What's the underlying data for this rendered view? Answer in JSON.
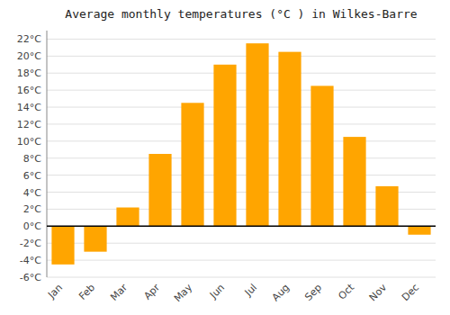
{
  "chart_data": {
    "type": "bar",
    "title": "Average monthly temperatures (°C ) in Wilkes-Barre",
    "categories": [
      "Jan",
      "Feb",
      "Mar",
      "Apr",
      "May",
      "Jun",
      "Jul",
      "Aug",
      "Sep",
      "Oct",
      "Nov",
      "Dec"
    ],
    "values": [
      -4.5,
      -3.0,
      2.2,
      8.5,
      14.5,
      19.0,
      21.5,
      20.5,
      16.5,
      10.5,
      4.7,
      -1.0
    ],
    "color": "#FFA500",
    "ylim": [
      -6,
      23
    ],
    "yticks": [
      {
        "value": -6,
        "label": "-6°C"
      },
      {
        "value": -4,
        "label": "-4°C"
      },
      {
        "value": -2,
        "label": "-2°C"
      },
      {
        "value": 0,
        "label": "0°C"
      },
      {
        "value": 2,
        "label": "2°C"
      },
      {
        "value": 4,
        "label": "4°C"
      },
      {
        "value": 6,
        "label": "6°C"
      },
      {
        "value": 8,
        "label": "8°C"
      },
      {
        "value": 10,
        "label": "10°C"
      },
      {
        "value": 12,
        "label": "12°C"
      },
      {
        "value": 14,
        "label": "14°C"
      },
      {
        "value": 16,
        "label": "16°C"
      },
      {
        "value": 18,
        "label": "18°C"
      },
      {
        "value": 20,
        "label": "20°C"
      },
      {
        "value": 22,
        "label": "22°C"
      }
    ],
    "grid": true
  }
}
